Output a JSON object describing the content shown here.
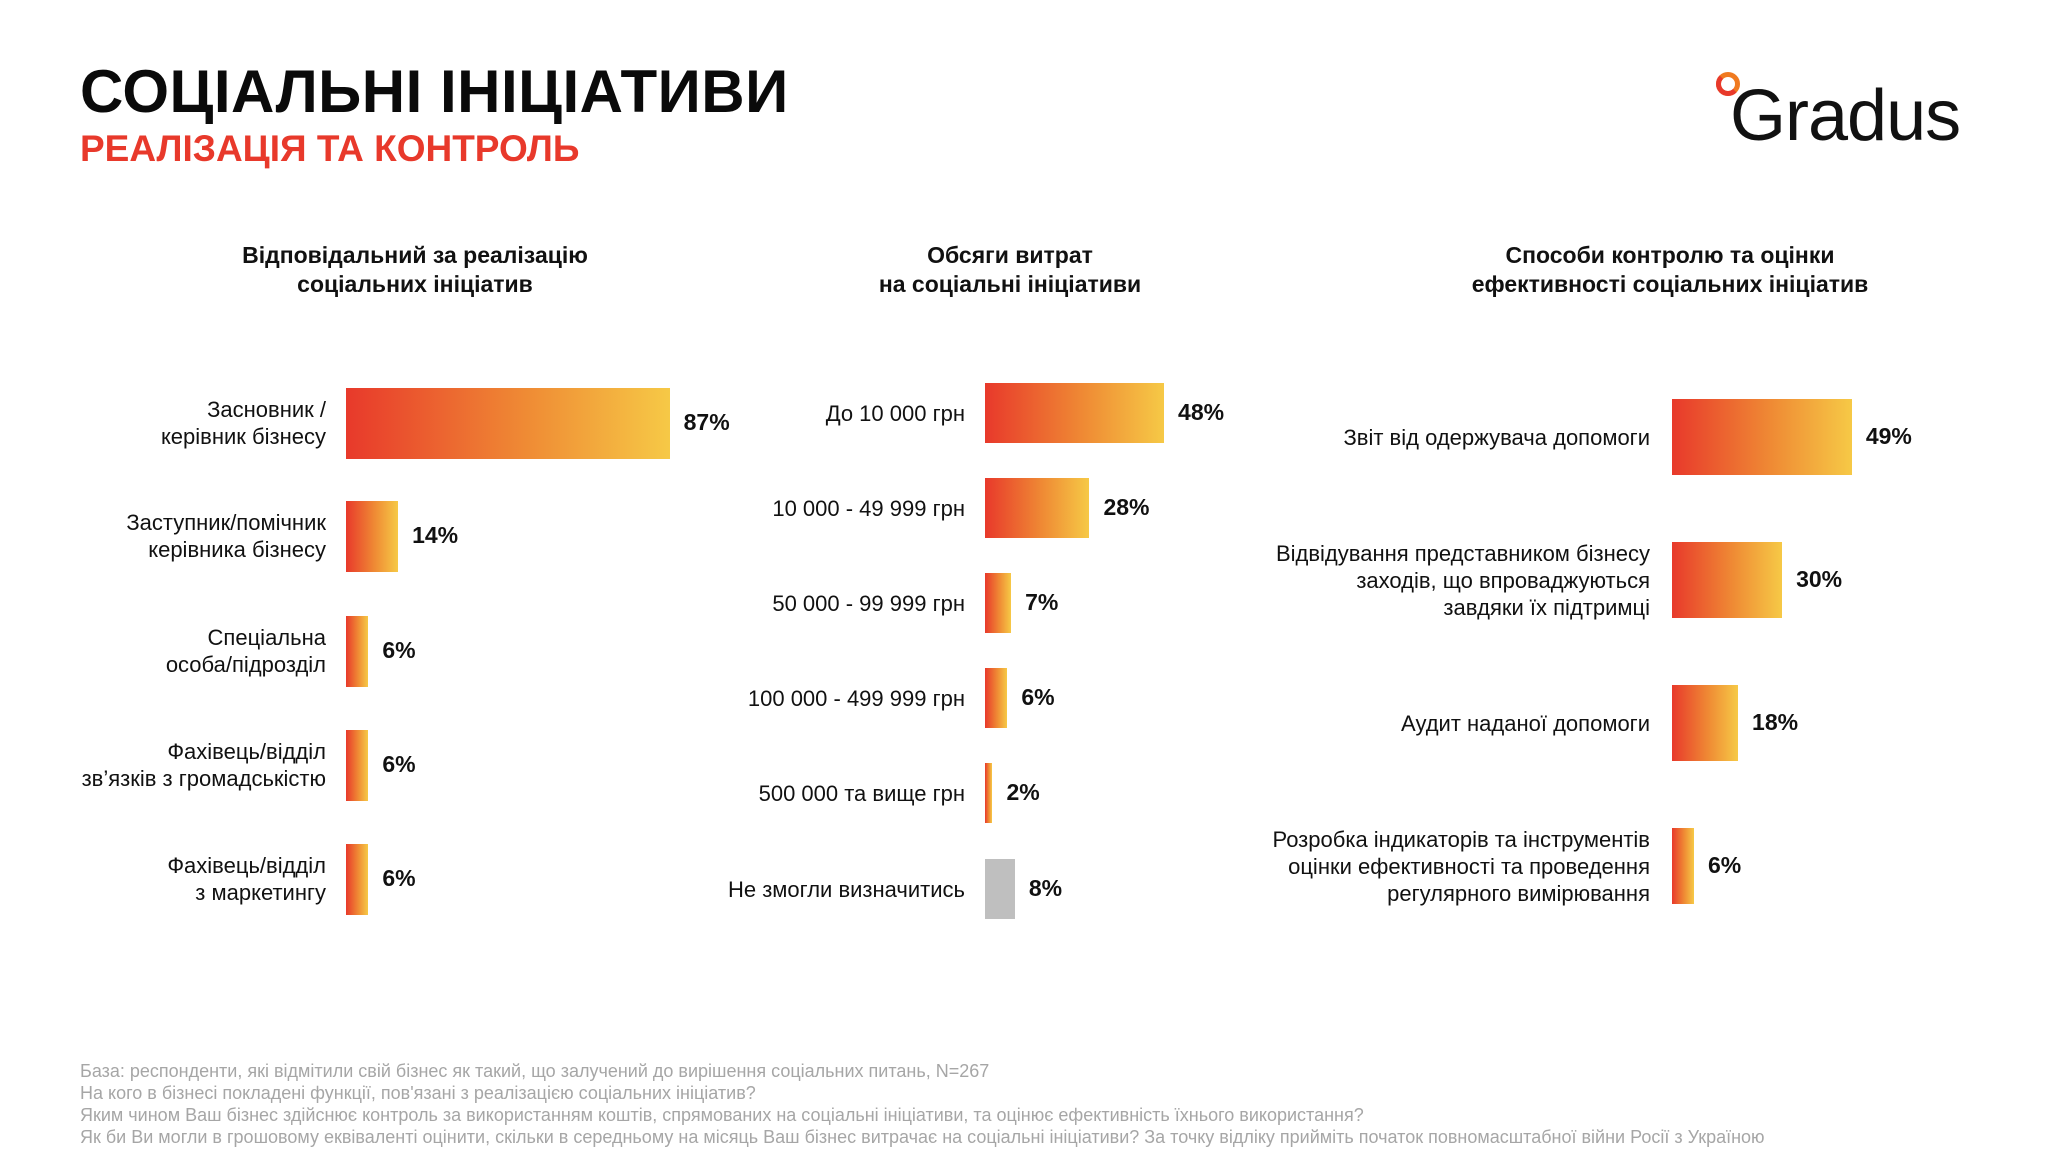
{
  "header": {
    "title": "СОЦІАЛЬНІ ІНІЦІАТИВИ",
    "subtitle": "РЕАЛІЗАЦІЯ ТА КОНТРОЛЬ",
    "logo_text": "Gradus",
    "logo_icon": "ring-dot-icon"
  },
  "colors": {
    "accent_red": "#e8392b",
    "gradient_start": "#e8392b",
    "gradient_end": "#f6c946",
    "neutral_bar": "#bfbfbf",
    "footnote_gray": "#a6a6a6"
  },
  "chart_data": [
    {
      "type": "bar",
      "orientation": "horizontal",
      "title": "Відповідальний за реалізацію соціальних ініціатив",
      "title_lines": [
        "Відповідальний за реалізацію",
        "соціальних ініціатив"
      ],
      "unit": "%",
      "xlim": [
        0,
        100
      ],
      "grid": false,
      "legend": "none",
      "categories": [
        "Засновник / керівник бізнесу",
        "Заступник/помічник керівника бізнесу",
        "Спеціальна особа/підрозділ",
        "Фахівець/відділ зв’язків з громадськістю",
        "Фахівець/відділ з маркетингу"
      ],
      "category_lines": [
        [
          "Засновник /",
          "керівник бізнесу"
        ],
        [
          "Заступник/помічник",
          "керівника бізнесу"
        ],
        [
          "Спеціальна",
          "особа/підрозділ"
        ],
        [
          "Фахівець/відділ",
          "зв’язків з громадськістю"
        ],
        [
          "Фахівець/відділ",
          "з маркетингу"
        ]
      ],
      "values": [
        87,
        14,
        6,
        6,
        6
      ],
      "value_labels": [
        "87%",
        "14%",
        "6%",
        "6%",
        "6%"
      ],
      "neutral": [
        false,
        false,
        false,
        false,
        false
      ]
    },
    {
      "type": "bar",
      "orientation": "horizontal",
      "title": "Обсяги витрат на соціальні ініціативи",
      "title_lines": [
        "Обсяги витрат",
        "на соціальні ініціативи"
      ],
      "unit": "%",
      "xlim": [
        0,
        100
      ],
      "grid": false,
      "legend": "none",
      "categories": [
        "До 10 000 грн",
        "10 000 - 49 999 грн",
        "50 000 - 99 999 грн",
        "100 000 - 499 999 грн",
        "500 000 та вище грн",
        "Не змогли визначитись"
      ],
      "category_lines": [
        [
          "До 10 000 грн"
        ],
        [
          "10 000 - 49 999 грн"
        ],
        [
          "50 000 - 99 999 грн"
        ],
        [
          "100 000 - 499 999 грн"
        ],
        [
          "500 000 та вище грн"
        ],
        [
          "Не змогли визначитись"
        ]
      ],
      "values": [
        48,
        28,
        7,
        6,
        2,
        8
      ],
      "value_labels": [
        "48%",
        "28%",
        "7%",
        "6%",
        "2%",
        "8%"
      ],
      "neutral": [
        false,
        false,
        false,
        false,
        false,
        true
      ]
    },
    {
      "type": "bar",
      "orientation": "horizontal",
      "title": "Способи контролю та оцінки ефективності соціальних ініціатив",
      "title_lines": [
        "Способи контролю та оцінки",
        "ефективності соціальних ініціатив"
      ],
      "unit": "%",
      "xlim": [
        0,
        100
      ],
      "grid": false,
      "legend": "none",
      "categories": [
        "Звіт від одержувача допомоги",
        "Відвідування представником бізнесу заходів, що впроваджуються завдяки їх підтримці",
        "Аудит наданої допомоги",
        "Розробка індикаторів та інструментів оцінки ефективності та проведення регулярного вимірювання"
      ],
      "category_lines": [
        [
          "Звіт від одержувача допомоги"
        ],
        [
          "Відвідування представником бізнесу",
          "заходів, що впроваджуються",
          "завдяки їх підтримці"
        ],
        [
          "Аудит наданої допомоги"
        ],
        [
          "Розробка індикаторів та інструментів",
          "оцінки ефективності та проведення",
          "регулярного вимірювання"
        ]
      ],
      "values": [
        49,
        30,
        18,
        6
      ],
      "value_labels": [
        "49%",
        "30%",
        "18%",
        "6%"
      ],
      "neutral": [
        false,
        false,
        false,
        false
      ]
    }
  ],
  "footnotes": [
    "База: респонденти, які відмітили свій бізнес як такий, що залучений до вирішення соціальних питань, N=267",
    "На кого в бізнесі покладені функції, пов'язані з реалізацією соціальних ініціатив?",
    "Яким чином Ваш бізнес здійснює контроль за використанням коштів, спрямованих на соціальні ініціативи, та оцінює ефективність їхнього використання?",
    "Як би Ви могли в грошовому еквіваленті оцінити, скільки в середньому на місяць Ваш бізнес витрачає на соціальні ініціативи? За точку відліку прийміть початок повномасштабної війни Росії з Україною"
  ]
}
